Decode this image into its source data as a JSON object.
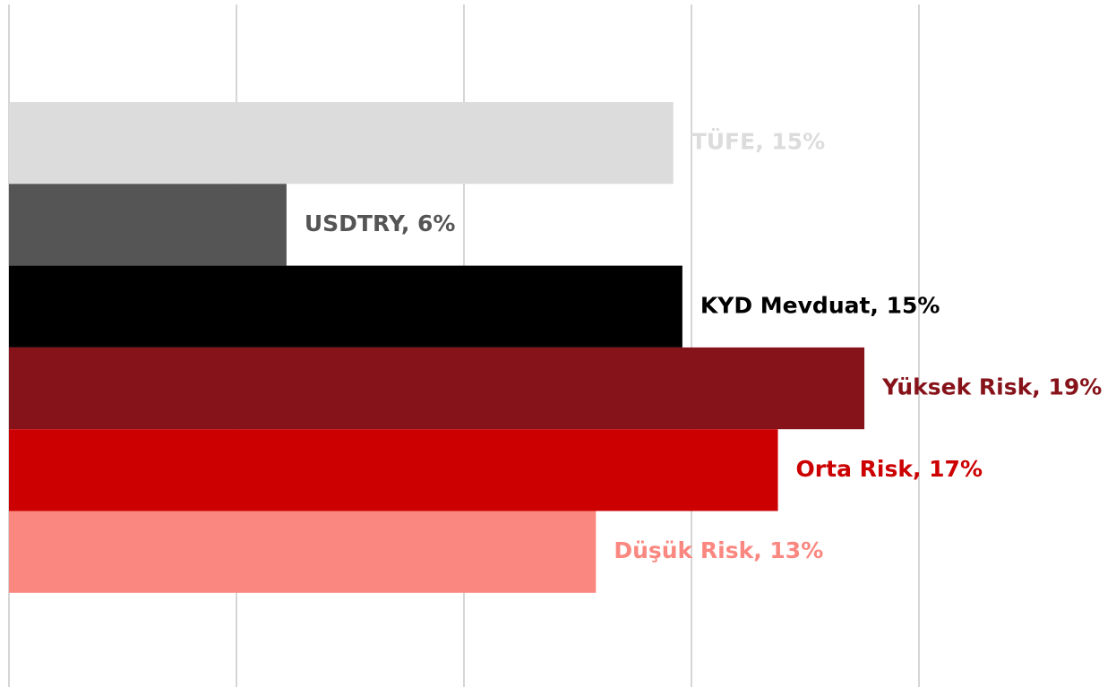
{
  "chart_data": {
    "type": "barh",
    "values": [
      14.6,
      6.1,
      14.8,
      18.8,
      16.9,
      12.9
    ],
    "value_labels": [
      "TÜFE, 15%",
      "USDTRY, 6%",
      "KYD Mevduat, 15%",
      "Yüksek Risk, 19%",
      "Orta Risk, 17%",
      "Düşük Risk, 13%"
    ],
    "colors": [
      "#dcdcdc",
      "#555555",
      "#000000",
      "#87131a",
      "#cc0000",
      "#fa8780"
    ],
    "xlim": [
      0,
      24.33
    ],
    "xticks": [
      0,
      5,
      10,
      15,
      20
    ],
    "grid": true
  }
}
